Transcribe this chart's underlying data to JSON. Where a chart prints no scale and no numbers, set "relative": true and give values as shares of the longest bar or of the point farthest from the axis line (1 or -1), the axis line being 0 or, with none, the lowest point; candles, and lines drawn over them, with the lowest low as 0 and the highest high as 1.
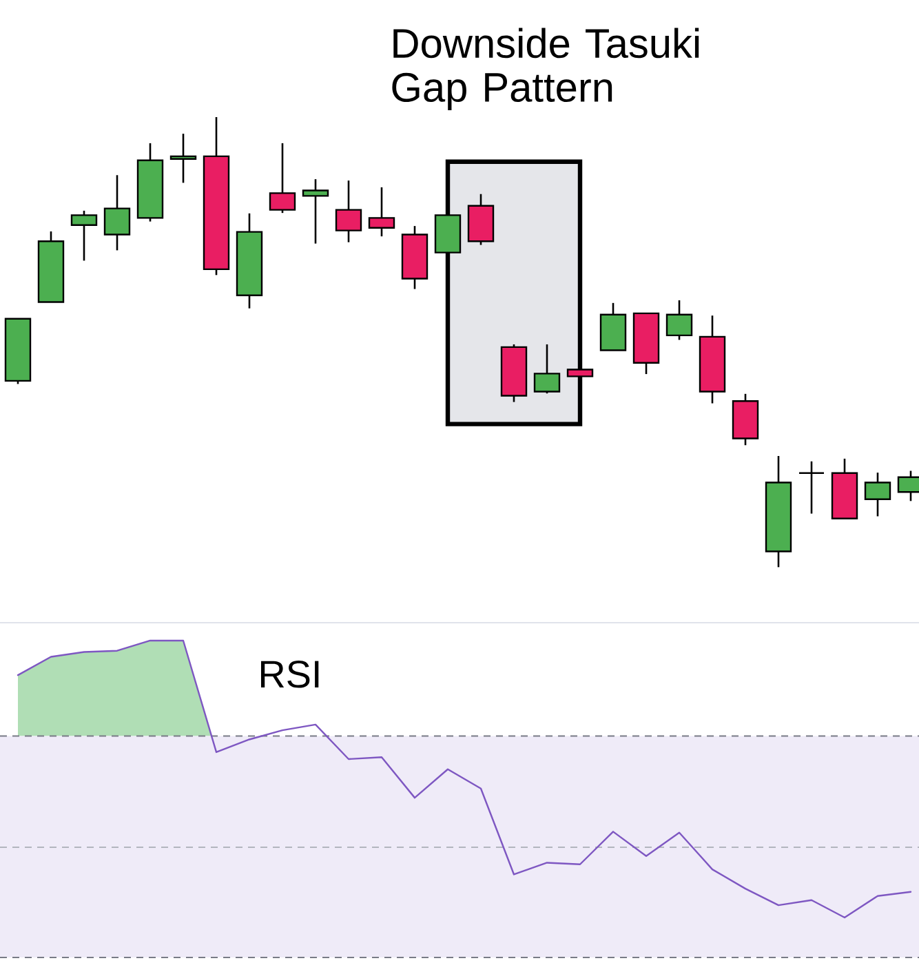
{
  "chart_data": [
    {
      "type": "candlestick",
      "title": "Downside Tasuki Gap Pattern",
      "relative": true,
      "tick_labels": false,
      "categories": [
        null,
        null,
        null,
        null,
        null,
        null,
        null,
        null,
        null,
        null,
        null,
        null,
        null,
        null,
        null,
        null,
        null,
        null,
        null,
        null,
        null,
        null,
        null,
        null,
        null,
        null,
        null,
        null
      ],
      "ohlc": [
        [
          0.414,
          0.552,
          0.407,
          0.552
        ],
        [
          0.589,
          0.746,
          0.589,
          0.724
        ],
        [
          0.76,
          0.792,
          0.681,
          0.782
        ],
        [
          0.739,
          0.871,
          0.704,
          0.797
        ],
        [
          0.776,
          0.942,
          0.768,
          0.904
        ],
        [
          0.907,
          0.963,
          0.854,
          0.913
        ],
        [
          0.913,
          1.0,
          0.649,
          0.662
        ],
        [
          0.604,
          0.786,
          0.575,
          0.745
        ],
        [
          0.831,
          0.942,
          0.787,
          0.794
        ],
        [
          0.825,
          0.862,
          0.719,
          0.837
        ],
        [
          0.794,
          0.859,
          0.722,
          0.748
        ],
        [
          0.776,
          0.844,
          0.735,
          0.754
        ],
        [
          0.739,
          0.758,
          0.618,
          0.641
        ],
        [
          0.699,
          0.782,
          0.699,
          0.782
        ],
        [
          0.803,
          0.829,
          0.716,
          0.724
        ],
        [
          0.489,
          0.495,
          0.367,
          0.381
        ],
        [
          0.39,
          0.495,
          0.386,
          0.43
        ],
        [
          0.439,
          0.439,
          0.424,
          0.424
        ],
        [
          0.482,
          0.587,
          0.482,
          0.561
        ],
        [
          0.564,
          0.564,
          0.429,
          0.454
        ],
        [
          0.515,
          0.593,
          0.505,
          0.561
        ],
        [
          0.512,
          0.559,
          0.364,
          0.39
        ],
        [
          0.369,
          0.385,
          0.271,
          0.286
        ],
        [
          0.035,
          0.247,
          0.0,
          0.188
        ],
        [
          0.209,
          0.235,
          0.119,
          0.209
        ],
        [
          0.209,
          0.241,
          0.108,
          0.108
        ],
        [
          0.151,
          0.21,
          0.113,
          0.188
        ],
        [
          0.167,
          0.214,
          0.147,
          0.2
        ]
      ],
      "colors": [
        "#4caf50",
        "#4caf50",
        "#4caf50",
        "#4caf50",
        "#4caf50",
        "#4caf50",
        "#e91e63",
        "#4caf50",
        "#e91e63",
        "#4caf50",
        "#e91e63",
        "#e91e63",
        "#e91e63",
        "#4caf50",
        "#e91e63",
        "#e91e63",
        "#4caf50",
        "#e91e63",
        "#4caf50",
        "#e91e63",
        "#4caf50",
        "#e91e63",
        "#e91e63",
        "#4caf50",
        "#000000",
        "#e91e63",
        "#4caf50",
        "#4caf50"
      ]
    },
    {
      "type": "line",
      "title": "RSI",
      "relative": true,
      "tick_labels": false,
      "categories": [
        null,
        null,
        null,
        null,
        null,
        null,
        null,
        null,
        null,
        null,
        null,
        null,
        null,
        null,
        null,
        null,
        null,
        null,
        null,
        null,
        null,
        null,
        null,
        null,
        null,
        null,
        null,
        null
      ],
      "values": [
        0.891,
        0.949,
        0.964,
        0.968,
        1.0,
        1.0,
        0.648,
        0.688,
        0.717,
        0.735,
        0.626,
        0.632,
        0.504,
        0.594,
        0.533,
        0.262,
        0.299,
        0.294,
        0.397,
        0.32,
        0.394,
        0.278,
        0.217,
        0.165,
        0.181,
        0.126,
        0.194,
        0.207
      ],
      "color": "#7e57c2",
      "ref_lines": [
        {
          "axis": "y",
          "value": 0.699,
          "color": "#787b86",
          "line_style": "dashed"
        },
        {
          "axis": "y",
          "value": 0.348,
          "color": "#b2b5be",
          "line_style": "dashed"
        },
        {
          "axis": "y",
          "value": 0.0,
          "color": "#787b86",
          "line_style": "dashed"
        }
      ],
      "bands": [
        {
          "axis": "y",
          "from": 0.0,
          "to": 0.699,
          "color": "#efebf8"
        }
      ]
    }
  ]
}
